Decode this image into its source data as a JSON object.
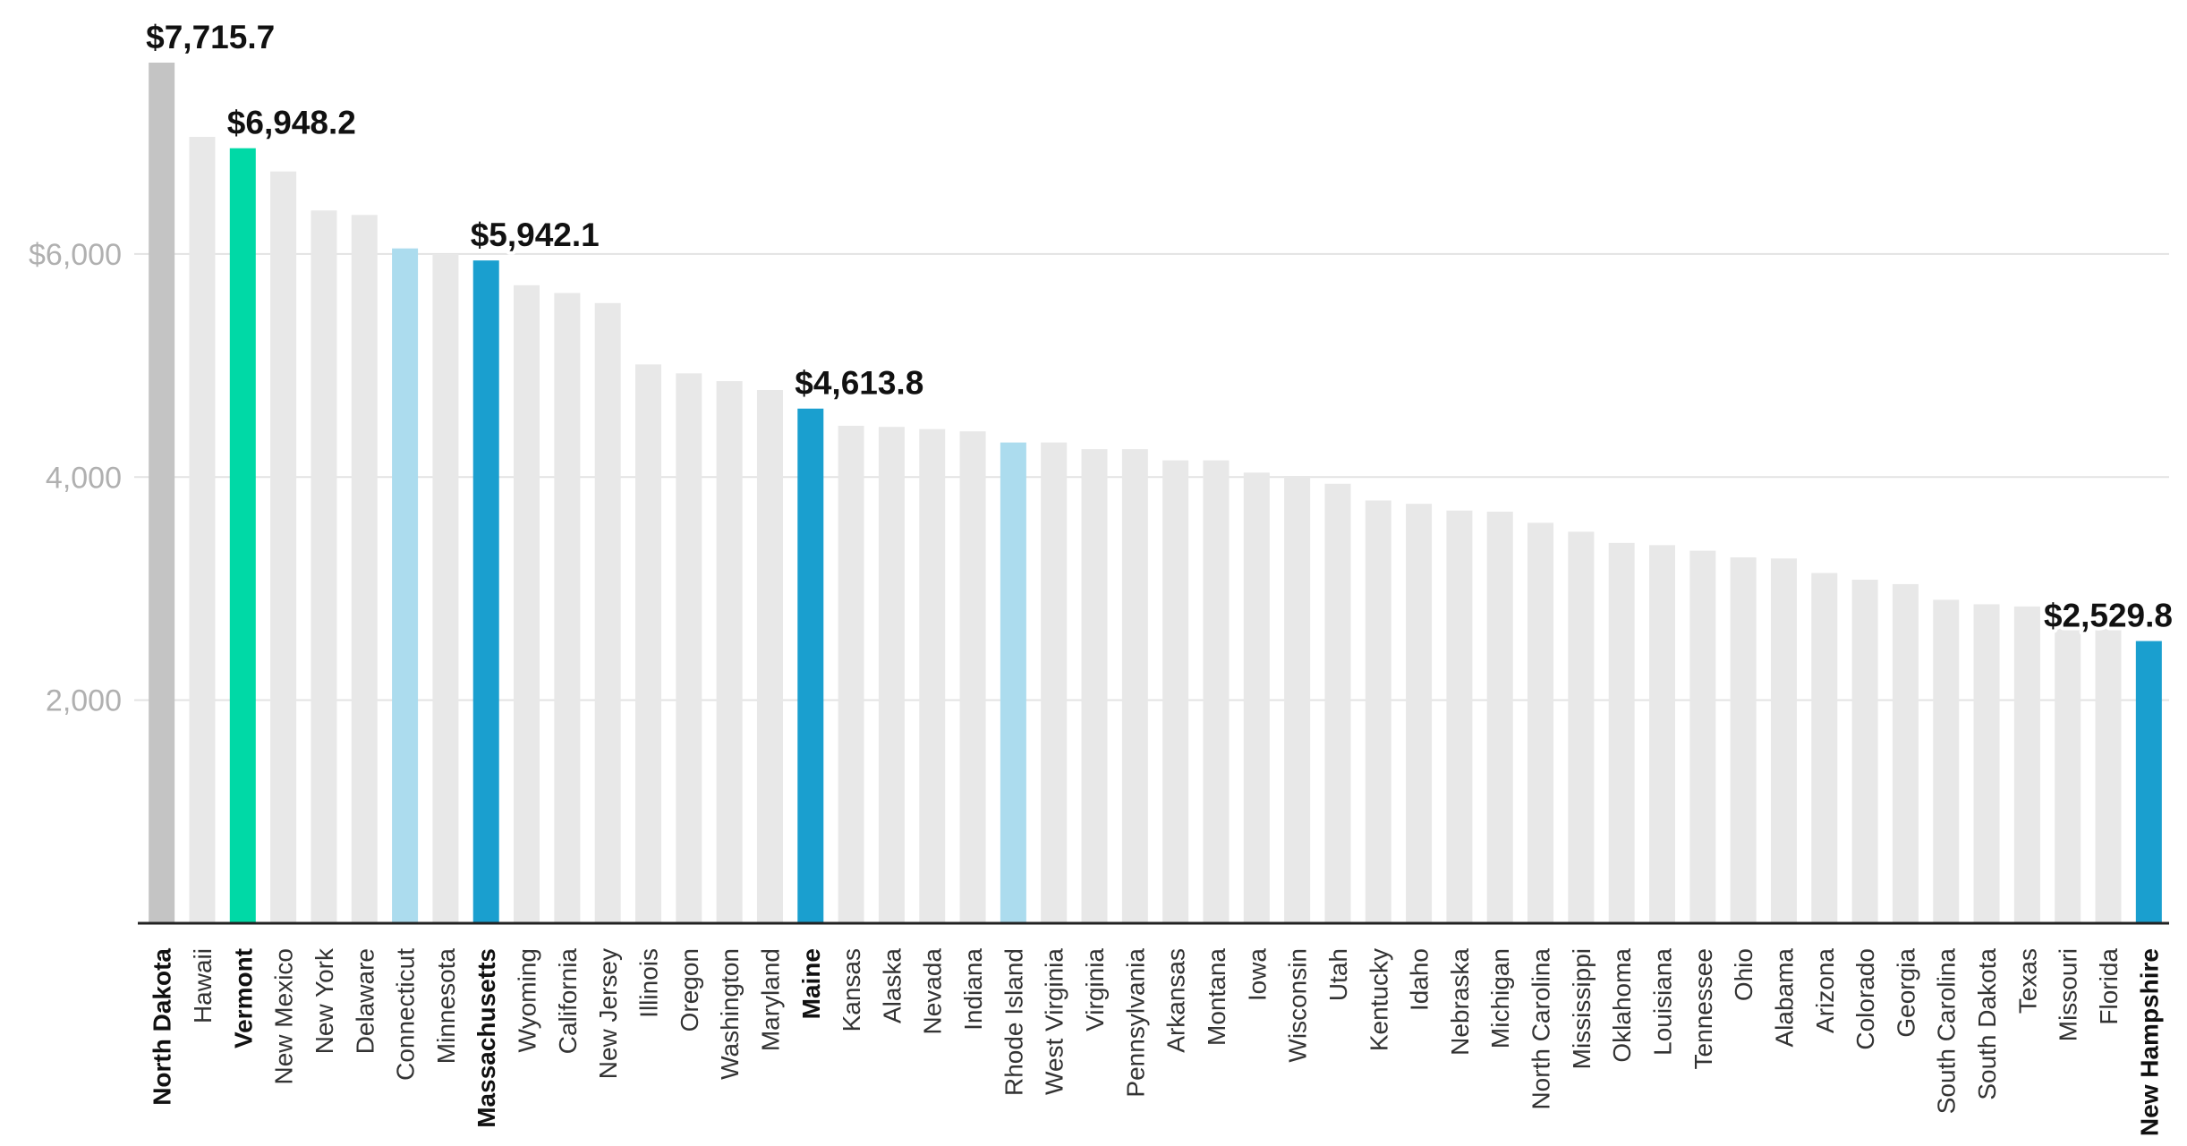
{
  "chart_data": {
    "type": "bar",
    "title": "",
    "xlabel": "",
    "ylabel": "",
    "ylim": [
      0,
      7715.7
    ],
    "y_ticks": [
      {
        "value": 2000,
        "label": "2,000"
      },
      {
        "value": 4000,
        "label": "4,000"
      },
      {
        "value": 6000,
        "label": "$6,000"
      }
    ],
    "grid": true,
    "colors": {
      "default": "#e8e8e8",
      "north_dakota": "#c4c4c4",
      "vermont": "#00d9a6",
      "highlight": "#1a9fcf",
      "light_highlight": "#acdcee",
      "axis": "#222222",
      "gridline": "#e3e3e3"
    },
    "categories": [
      "North Dakota",
      "Hawaii",
      "Vermont",
      "New Mexico",
      "New York",
      "Delaware",
      "Connecticut",
      "Minnesota",
      "Massachusetts",
      "Wyoming",
      "California",
      "New Jersey",
      "Illinois",
      "Oregon",
      "Washington",
      "Maryland",
      "Maine",
      "Kansas",
      "Alaska",
      "Nevada",
      "Indiana",
      "Rhode Island",
      "West Virginia",
      "Virginia",
      "Pennsylvania",
      "Arkansas",
      "Montana",
      "Iowa",
      "Wisconsin",
      "Utah",
      "Kentucky",
      "Idaho",
      "Nebraska",
      "Michigan",
      "North Carolina",
      "Mississippi",
      "Oklahoma",
      "Louisiana",
      "Tennessee",
      "Ohio",
      "Alabama",
      "Arizona",
      "Colorado",
      "Georgia",
      "South Carolina",
      "South Dakota",
      "Texas",
      "Missouri",
      "Florida",
      "New Hampshire"
    ],
    "values": [
      7715.7,
      7050,
      6948.2,
      6740,
      6390,
      6350,
      6050,
      6000,
      5942.1,
      5720,
      5650,
      5560,
      5010,
      4930,
      4860,
      4780,
      4613.8,
      4460,
      4450,
      4430,
      4410,
      4310,
      4310,
      4250,
      4250,
      4150,
      4150,
      4040,
      4010,
      3940,
      3790,
      3760,
      3700,
      3690,
      3590,
      3510,
      3410,
      3390,
      3340,
      3280,
      3270,
      3140,
      3080,
      3040,
      2900,
      2860,
      2840,
      2640,
      2680,
      2529.8
    ],
    "bar_color_keys": [
      "north_dakota",
      "default",
      "vermont",
      "default",
      "default",
      "default",
      "light_highlight",
      "default",
      "highlight",
      "default",
      "default",
      "default",
      "default",
      "default",
      "default",
      "default",
      "highlight",
      "default",
      "default",
      "default",
      "default",
      "light_highlight",
      "default",
      "default",
      "default",
      "default",
      "default",
      "default",
      "default",
      "default",
      "default",
      "default",
      "default",
      "default",
      "default",
      "default",
      "default",
      "default",
      "default",
      "default",
      "default",
      "default",
      "default",
      "default",
      "default",
      "default",
      "default",
      "default",
      "default",
      "highlight"
    ],
    "bold_categories": [
      "North Dakota",
      "Vermont",
      "Massachusetts",
      "Maine",
      "New Hampshire"
    ],
    "data_labels": [
      {
        "category": "North Dakota",
        "text": "$7,715.7"
      },
      {
        "category": "Vermont",
        "text": "$6,948.2"
      },
      {
        "category": "Massachusetts",
        "text": "$5,942.1"
      },
      {
        "category": "Maine",
        "text": "$4,613.8"
      },
      {
        "category": "New Hampshire",
        "text": "$2,529.8"
      }
    ]
  }
}
